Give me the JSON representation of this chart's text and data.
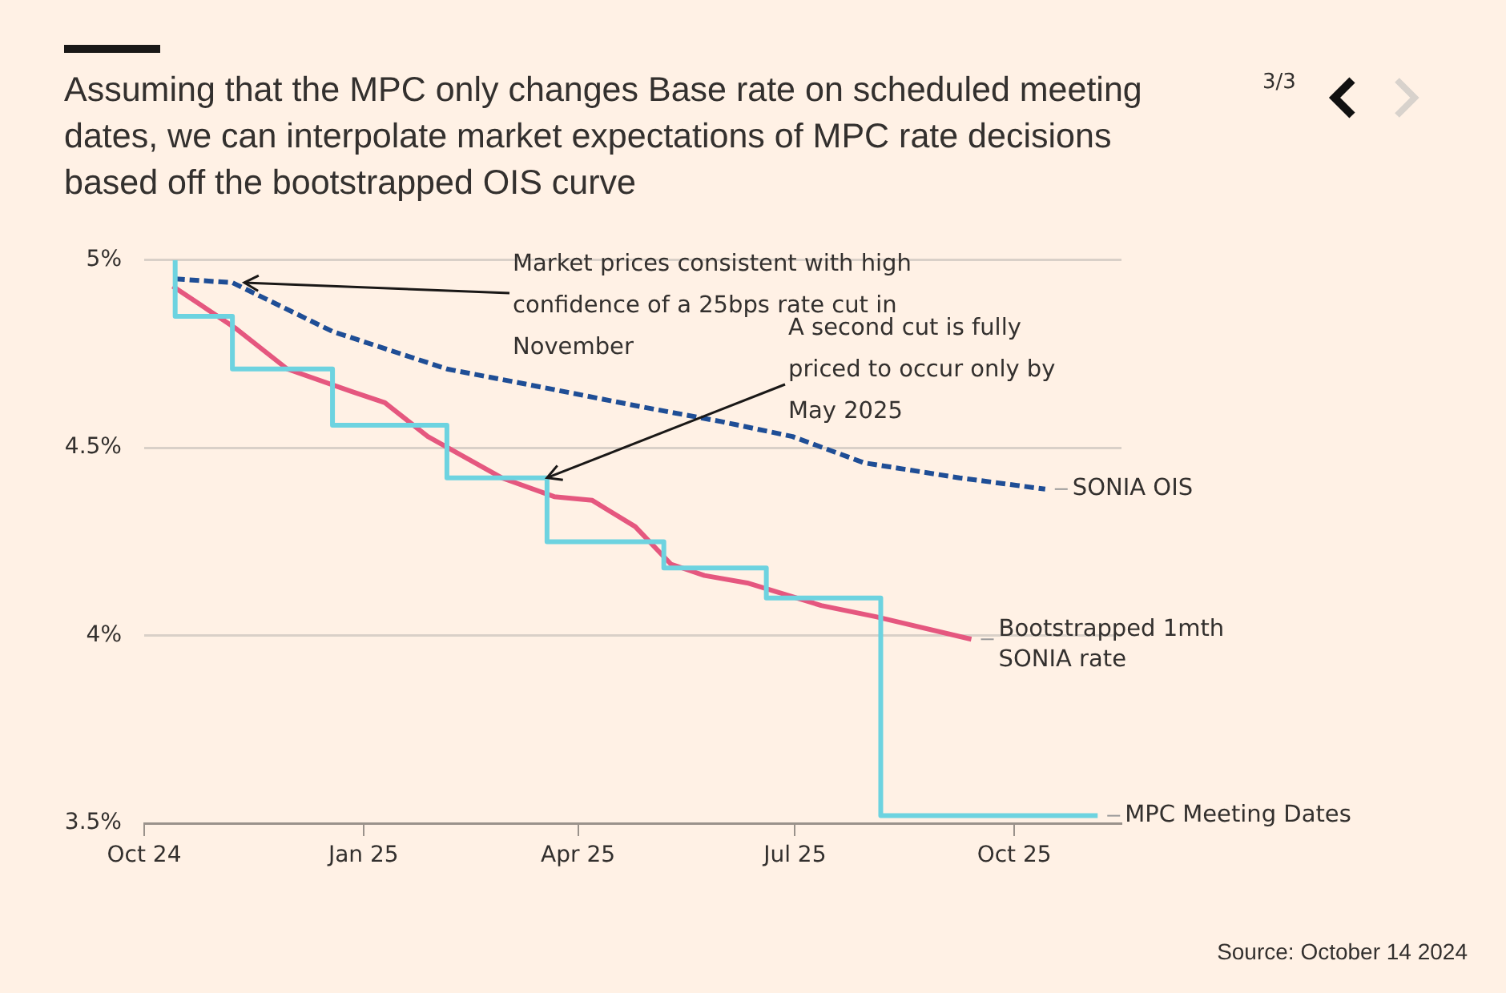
{
  "chart_data": {
    "type": "line",
    "title": "Assuming that the MPC only changes Base rate on scheduled meeting dates, we can interpolate market expectations of MPC rate decisions based off the bootstrapped OIS curve",
    "xlim": [
      "2024-10-01",
      "2025-11-15"
    ],
    "xticks": [
      {
        "value": "2024-10-01",
        "label": "Oct 24"
      },
      {
        "value": "2025-01-01",
        "label": "Jan 25"
      },
      {
        "value": "2025-04-01",
        "label": "Apr 25"
      },
      {
        "value": "2025-07-01",
        "label": "Jul 25"
      },
      {
        "value": "2025-10-01",
        "label": "Oct 25"
      }
    ],
    "ylim": [
      3.5,
      5
    ],
    "yticks": [
      {
        "value": 3.5,
        "label": "3.5%"
      },
      {
        "value": 4,
        "label": "4%"
      },
      {
        "value": 4.5,
        "label": "4.5%"
      },
      {
        "value": 5,
        "label": "5%"
      }
    ],
    "grid": "y",
    "legend": false,
    "series": [
      {
        "name": "MPC Meeting Dates",
        "type": "step",
        "color": "#6dd3e0",
        "line_style": "solid",
        "x": [
          "2024-10-14",
          "2024-11-07",
          "2024-12-19",
          "2025-02-05",
          "2025-03-19",
          "2025-05-07",
          "2025-06-19",
          "2025-08-06",
          "2025-09-17",
          "2025-11-05"
        ],
        "values": [
          5.0,
          4.85,
          4.71,
          4.56,
          4.42,
          4.25,
          4.18,
          4.1,
          3.52,
          3.52
        ]
      },
      {
        "name": "SONIA OIS",
        "color": "#1f4e96",
        "line_style": "dashed",
        "x": [
          "2024-10-14",
          "2024-11-07",
          "2024-12-19",
          "2025-02-05",
          "2025-03-18",
          "2025-04-27",
          "2025-05-31",
          "2025-06-30",
          "2025-07-30",
          "2025-09-08",
          "2025-10-14"
        ],
        "values": [
          4.95,
          4.94,
          4.81,
          4.71,
          4.66,
          4.61,
          4.57,
          4.53,
          4.46,
          4.42,
          4.39
        ]
      },
      {
        "name": "Bootstrapped 1mth SONIA rate",
        "color": "#e5577f",
        "line_style": "solid",
        "x": [
          "2024-10-13",
          "2024-11-08",
          "2024-11-30",
          "2024-12-27",
          "2025-01-10",
          "2025-01-28",
          "2025-02-28",
          "2025-03-22",
          "2025-04-07",
          "2025-04-25",
          "2025-05-10",
          "2025-05-24",
          "2025-06-11",
          "2025-07-12",
          "2025-08-04",
          "2025-09-13"
        ],
        "values": [
          4.93,
          4.82,
          4.71,
          4.65,
          4.62,
          4.53,
          4.42,
          4.37,
          4.36,
          4.29,
          4.19,
          4.16,
          4.14,
          4.08,
          4.05,
          3.99
        ]
      }
    ],
    "annotations": [
      {
        "text": "Market prices consistent with high confidence of a 25bps rate cut in November",
        "x": "2024-11-12",
        "y": 4.94
      },
      {
        "text": "A second cut is fully priced to occur only by May 2025",
        "x": "2025-03-19",
        "y": 4.42
      },
      "3/3",
      "Source: October 14 2024"
    ]
  }
}
